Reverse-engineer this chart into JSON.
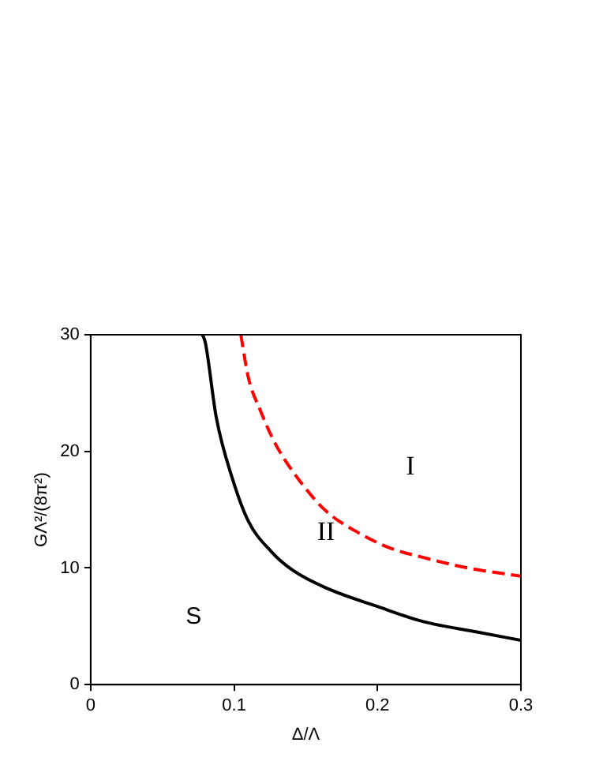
{
  "chart_data": {
    "type": "line",
    "xlabel": "Δ/Λ",
    "ylabel": "GΛ²/(8π²)",
    "xlim": [
      0,
      0.3
    ],
    "xticks": [
      0,
      0.1,
      0.2,
      0.3
    ],
    "ylim": [
      0,
      30
    ],
    "yticks": [
      0,
      10,
      20,
      30
    ],
    "grid": false,
    "legend": false,
    "marker": "none",
    "series": [
      {
        "color": "#000000",
        "line_style": "solid",
        "x": [
          0.078,
          0.08,
          0.0876,
          0.099,
          0.11,
          0.126,
          0.141,
          0.164,
          0.2,
          0.232,
          0.27,
          0.3
        ],
        "values": [
          30,
          29.3,
          22.9,
          17.6,
          14.0,
          11.4,
          9.8,
          8.3,
          6.7,
          5.4,
          4.5,
          3.8
        ]
      },
      {
        "color": "#ff0000",
        "line_style": "dashed",
        "x": [
          0.1047,
          0.11,
          0.118,
          0.129,
          0.145,
          0.164,
          0.187,
          0.209,
          0.232,
          0.263,
          0.3
        ],
        "values": [
          30,
          26.3,
          23.6,
          20.6,
          17.6,
          14.9,
          13.0,
          11.7,
          10.9,
          10.0,
          9.3
        ]
      }
    ],
    "annotations": [
      "I",
      "II",
      "S"
    ]
  }
}
